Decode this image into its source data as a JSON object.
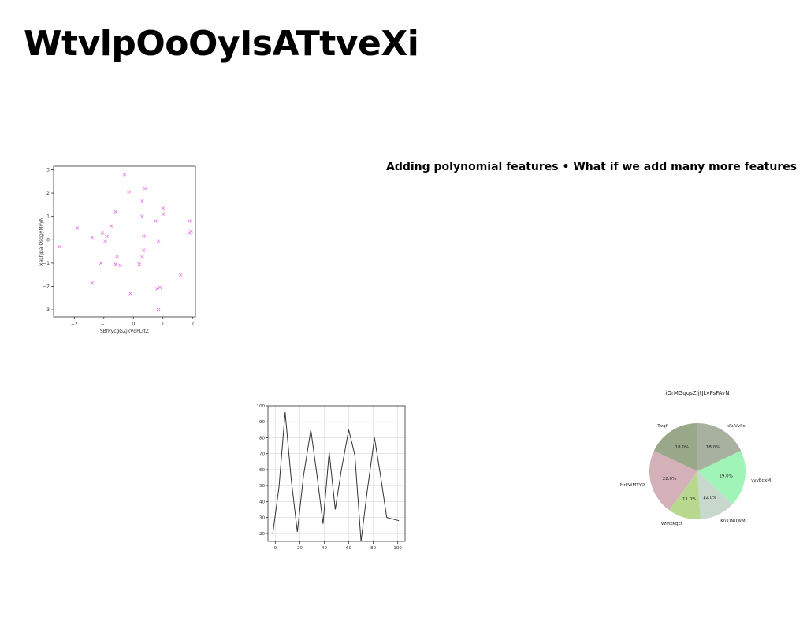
{
  "page": {
    "title": "WtvlpOoOyIsATtveXi",
    "subtitle": "Adding polynomial features • What if we add many more features"
  },
  "chart_data": [
    {
      "type": "scatter",
      "xlabel": "SBfPycgGZjkVqPLrtZ",
      "ylabel": "xaLhjpa OsqgyMvyN",
      "xlim": [
        -2.7,
        2.1
      ],
      "ylim": [
        -3.3,
        3.15
      ],
      "xticks": [
        -2,
        -1,
        0,
        1,
        2
      ],
      "yticks": [
        -3,
        -2,
        -1,
        0,
        1,
        2,
        3
      ],
      "xtick_labels": [
        "−2",
        "−1",
        "0",
        "1",
        "2"
      ],
      "ytick_labels": [
        "−3",
        "−2",
        "−1",
        "0",
        "1",
        "2",
        "3"
      ],
      "marker": "x",
      "color": "#e67ee6",
      "points": [
        [
          -2.5,
          -0.3
        ],
        [
          -1.9,
          0.5
        ],
        [
          -1.4,
          0.1
        ],
        [
          -1.4,
          -1.85
        ],
        [
          -1.1,
          -1.0
        ],
        [
          -1.05,
          0.3
        ],
        [
          -0.95,
          -0.05
        ],
        [
          -0.9,
          0.15
        ],
        [
          -0.75,
          0.6
        ],
        [
          -0.6,
          1.2
        ],
        [
          -0.55,
          -0.7
        ],
        [
          -0.6,
          -1.05
        ],
        [
          -0.45,
          -1.1
        ],
        [
          -0.3,
          2.8
        ],
        [
          -0.15,
          2.05
        ],
        [
          -0.1,
          -2.3
        ],
        [
          0.2,
          -1.05
        ],
        [
          0.3,
          1.65
        ],
        [
          0.3,
          1.0
        ],
        [
          0.35,
          0.15
        ],
        [
          0.35,
          -0.45
        ],
        [
          0.3,
          -0.75
        ],
        [
          0.4,
          2.2
        ],
        [
          0.75,
          0.8
        ],
        [
          0.8,
          -2.1
        ],
        [
          0.9,
          -2.05
        ],
        [
          0.85,
          -0.05
        ],
        [
          0.85,
          -3.0
        ],
        [
          1.0,
          1.1
        ],
        [
          1.0,
          1.35
        ],
        [
          1.6,
          -1.5
        ],
        [
          1.9,
          0.8
        ],
        [
          1.9,
          0.3
        ],
        [
          1.95,
          0.35
        ]
      ]
    },
    {
      "type": "line",
      "xlim": [
        -6,
        106
      ],
      "ylim": [
        15,
        100
      ],
      "xticks": [
        0,
        20,
        40,
        60,
        80,
        100
      ],
      "yticks": [
        20,
        30,
        40,
        50,
        60,
        70,
        80,
        90,
        100
      ],
      "xtick_labels": [
        "0",
        "20",
        "40",
        "60",
        "80",
        "100"
      ],
      "ytick_labels": [
        "20",
        "30",
        "40",
        "50",
        "60",
        "70",
        "80",
        "90",
        "100"
      ],
      "grid": true,
      "color": "#333333",
      "x": [
        -2,
        3,
        8,
        13,
        18,
        23,
        29,
        34,
        39,
        44,
        49,
        54,
        60,
        65,
        70,
        75,
        81,
        86,
        91,
        96,
        101
      ],
      "y": [
        20,
        49,
        96,
        54,
        21,
        56,
        85,
        57,
        26,
        71,
        35,
        60,
        85,
        69,
        15,
        46,
        80,
        56,
        30,
        29,
        28
      ]
    },
    {
      "type": "pie",
      "title": "iOrMGqqsZJjtJLvPsFAvN",
      "slices": [
        {
          "label": "kRuVvPc",
          "value": 18.0,
          "pct_label": "18.0%",
          "color": "#a8b0a0"
        },
        {
          "label": "vvyBdxM",
          "value": 19.0,
          "pct_label": "19.0%",
          "color": "#a0f4b8"
        },
        {
          "label": "KnIDNUWMC",
          "value": 12.0,
          "pct_label": "12.0%",
          "color": "#c8d8cc"
        },
        {
          "label": "VzMxKqEf",
          "value": 11.0,
          "pct_label": "11.0%",
          "color": "#b8d890"
        },
        {
          "label": "MrFWMTYD",
          "value": 22.0,
          "pct_label": "22.0%",
          "color": "#d4b0b8"
        },
        {
          "label": "Twqfl",
          "value": 18.0,
          "pct_label": "18.0%",
          "color": "#98a888"
        }
      ]
    }
  ]
}
